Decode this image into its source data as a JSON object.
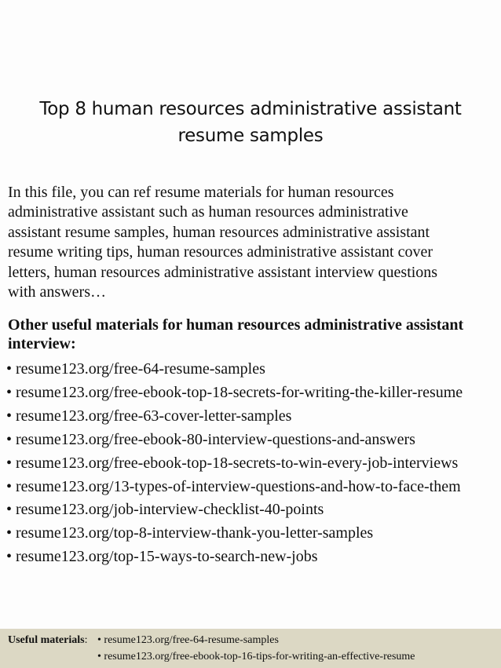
{
  "title": {
    "lines": [
      "Top 8 human resources administrative assistant",
      "resume samples"
    ]
  },
  "intro": {
    "lines": [
      "In this file, you can ref resume materials for human resources",
      "administrative assistant such as  human resources administrative",
      "assistant resume samples, human resources administrative assistant",
      "resume writing tips, human resources administrative assistant cover",
      "letters, human resources administrative assistant interview questions",
      "with answers…"
    ]
  },
  "heading": {
    "lines": [
      "Other useful materials for human resources administrative assistant",
      "interview:"
    ]
  },
  "links": [
    "• resume123.org/free-64-resume-samples",
    "• resume123.org/free-ebook-top-18-secrets-for-writing-the-killer-resume",
    "• resume123.org/free-63-cover-letter-samples",
    "• resume123.org/free-ebook-80-interview-questions-and-answers",
    "• resume123.org/free-ebook-top-18-secrets-to-win-every-job-interviews",
    "• resume123.org/13-types-of-interview-questions-and-how-to-face-them",
    "• resume123.org/job-interview-checklist-40-points",
    "• resume123.org/top-8-interview-thank-you-letter-samples",
    "• resume123.org/top-15-ways-to-search-new-jobs"
  ],
  "footer": {
    "label": "Useful materials",
    "colon": ":",
    "links": [
      "• resume123.org/free-64-resume-samples",
      "• resume123.org/free-ebook-top-16-tips-for-writing-an-effective-resume"
    ],
    "background": "#dcd8c4"
  }
}
